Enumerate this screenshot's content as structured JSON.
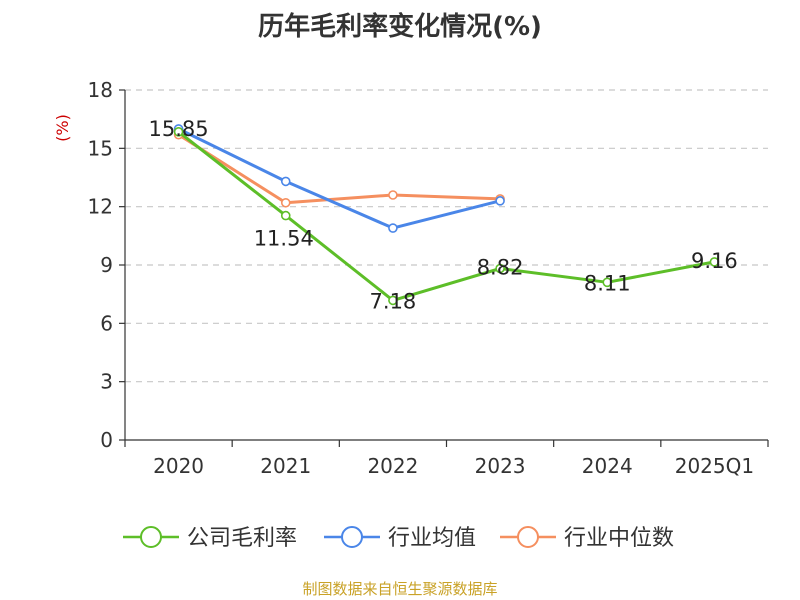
{
  "title": "历年毛利率变化情况(%)",
  "source": "制图数据来自恒生聚源数据库",
  "colors": {
    "company": "#5dbe28",
    "industry_avg": "#4a86e8",
    "industry_median": "#f58f5f",
    "axis_label": "#cc0000",
    "source": "#c9a227",
    "grid": "#c8c8c8",
    "axis": "#333333"
  },
  "chart_data": {
    "type": "line",
    "title": "历年毛利率变化情况(%)",
    "ylabel": "(%)",
    "xlabel": "",
    "categories": [
      "2020",
      "2021",
      "2022",
      "2023",
      "2024",
      "2025Q1"
    ],
    "ylim": [
      0,
      18
    ],
    "yticks": [
      "0",
      "3",
      "6",
      "9",
      "12",
      "15",
      "18"
    ],
    "grid": "horizontal-dashed",
    "legend": "bottom",
    "series": [
      {
        "name": "公司毛利率",
        "values": [
          15.85,
          11.54,
          7.18,
          8.82,
          8.11,
          9.16
        ],
        "labels": [
          "15.85",
          "11.54",
          "7.18",
          "8.82",
          "8.11",
          "9.16"
        ]
      },
      {
        "name": "行业均值",
        "values": [
          16.0,
          13.3,
          10.9,
          12.3,
          null,
          null
        ]
      },
      {
        "name": "行业中位数",
        "values": [
          15.7,
          12.2,
          12.6,
          12.4,
          null,
          null
        ]
      }
    ]
  }
}
